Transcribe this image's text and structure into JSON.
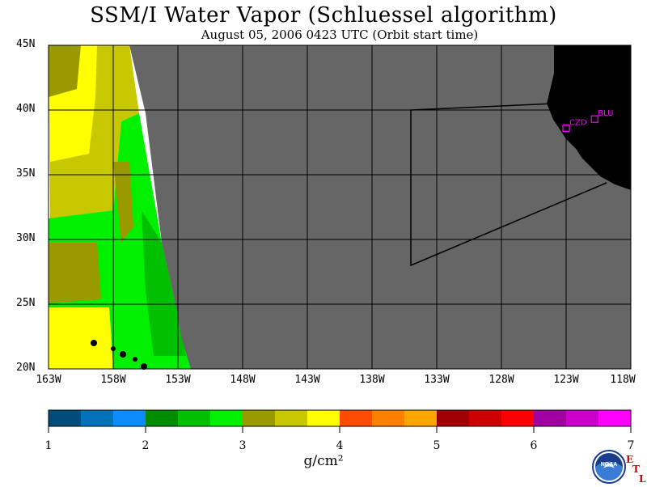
{
  "title": "SSM/I Water Vapor (Schluessel algorithm)",
  "subtitle": "August 05, 2006  0423 UTC  (Orbit start time)",
  "map": {
    "lat_labels": [
      "45N",
      "40N",
      "35N",
      "30N",
      "25N",
      "20N"
    ],
    "lon_labels": [
      "163W",
      "158W",
      "153W",
      "148W",
      "143W",
      "138W",
      "133W",
      "128W",
      "123W",
      "118W"
    ],
    "lon_range": [
      -163,
      -118
    ],
    "lat_range": [
      20,
      45
    ],
    "stations": [
      {
        "id": "CZD",
        "lon": -123.0,
        "lat": 38.6
      },
      {
        "id": "BLU",
        "lon": -120.8,
        "lat": 39.3
      }
    ],
    "colors": {
      "no_data": "#666666",
      "land": "#000000",
      "station": "#ff00ff"
    }
  },
  "colorbar": {
    "ticks": [
      "1",
      "2",
      "3",
      "4",
      "5",
      "6",
      "7"
    ],
    "unit": "g/cm²",
    "colors": [
      "#004c7a",
      "#0073b8",
      "#0a8cff",
      "#008c00",
      "#00c000",
      "#00f000",
      "#999900",
      "#c8c800",
      "#ffff00",
      "#ff4c00",
      "#ff7f00",
      "#ffa500",
      "#a00000",
      "#cc0000",
      "#ff0000",
      "#a000a0",
      "#cc00cc",
      "#ff00ff"
    ]
  },
  "logo": {
    "text": "NOAA",
    "letters": [
      "E",
      "T",
      "L"
    ]
  }
}
